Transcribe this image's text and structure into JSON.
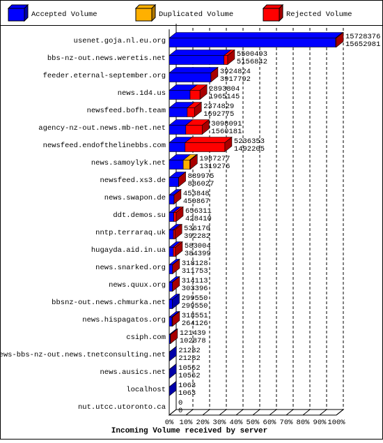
{
  "chart_data": {
    "type": "bar3d",
    "orientation": "horizontal",
    "stacked": true,
    "xlabel": "Incoming Volume received by server",
    "categories": [
      "usenet.goja.nl.eu.org",
      "bbs-nz-out.news.weretis.net",
      "feeder.eternal-september.org",
      "news.1d4.us",
      "newsfeed.bofh.team",
      "agency-nz-out.news.mb-net.net",
      "newsfeed.endofthelinebbs.com",
      "news.samoylyk.net",
      "newsfeed.xs3.de",
      "news.swapon.de",
      "ddt.demos.su",
      "nntp.terraraq.uk",
      "hugayda.aid.in.ua",
      "news.snarked.org",
      "news.quux.org",
      "bbsnz-out.news.chmurka.net",
      "news.hispagatos.org",
      "csiph.com",
      "news-bbs-nz-out.news.tnetconsulting.net",
      "news.ausics.net",
      "localhost",
      "nut.utcc.utoronto.ca"
    ],
    "offered": [
      15728376,
      5500493,
      3924824,
      2893804,
      2374829,
      3098091,
      5236353,
      1987277,
      889975,
      453848,
      656311,
      536170,
      583004,
      318128,
      314113,
      299550,
      318551,
      121439,
      21282,
      10562,
      1063,
      0
    ],
    "series": [
      {
        "name": "Accepted Volume",
        "color": "#0000ff",
        "side_color": "#0000a8",
        "values": [
          15652981,
          5156842,
          3917792,
          1965145,
          1692775,
          1560181,
          1492205,
          1319276,
          886027,
          450867,
          428410,
          392282,
          384399,
          311753,
          303396,
          299550,
          264126,
          102878,
          21282,
          10562,
          1063,
          0
        ]
      },
      {
        "name": "Duplicated Volume",
        "color": "#ffb000",
        "side_color": "#b07800",
        "values": [
          0,
          0,
          0,
          0,
          0,
          0,
          0,
          600000,
          0,
          0,
          0,
          0,
          0,
          0,
          0,
          0,
          0,
          0,
          0,
          0,
          0,
          0
        ]
      },
      {
        "name": "Rejected Volume",
        "color": "#ff0000",
        "side_color": "#a80000",
        "values": [
          75395,
          343651,
          7032,
          928659,
          682054,
          1537910,
          3744148,
          68001,
          3948,
          2981,
          227901,
          143888,
          198605,
          6375,
          10717,
          0,
          54425,
          18561,
          0,
          0,
          0,
          0
        ]
      }
    ],
    "xlim": [
      0,
      15728376
    ],
    "xticks": [
      {
        "value": 0,
        "label": "0%"
      },
      {
        "value": 1572837.6,
        "label": "10%"
      },
      {
        "value": 3145675.2,
        "label": "20%"
      },
      {
        "value": 4718512.8,
        "label": "30%"
      },
      {
        "value": 6291350.4,
        "label": "40%"
      },
      {
        "value": 7864188,
        "label": "50%"
      },
      {
        "value": 9437025.6,
        "label": "60%"
      },
      {
        "value": 11009863.2,
        "label": "70%"
      },
      {
        "value": 12582700.8,
        "label": "80%"
      },
      {
        "value": 14155538.4,
        "label": "90%"
      },
      {
        "value": 15728376,
        "label": "100%"
      }
    ],
    "grid": true
  }
}
